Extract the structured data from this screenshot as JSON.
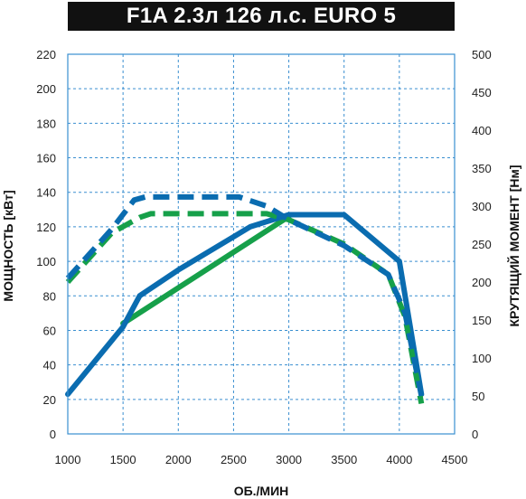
{
  "chart_data": {
    "type": "line",
    "title": "F1A 2.3л 126 л.с. EURO 5",
    "xlabel": "ОБ./МИН",
    "ylabel_left": "МОЩНОСТЬ [кВт]",
    "ylabel_right": "КРУТЯЩИЙ МОМЕНТ [Нм]",
    "xlim": [
      1000,
      4500
    ],
    "ylim_left": [
      0,
      220
    ],
    "ylim_right": [
      0,
      500
    ],
    "x_ticks": [
      1000,
      1500,
      2000,
      2500,
      3000,
      3500,
      4000,
      4500
    ],
    "y_ticks_left": [
      0,
      20,
      40,
      60,
      80,
      100,
      120,
      140,
      160,
      180,
      200,
      220
    ],
    "y_ticks_right": [
      0,
      50,
      100,
      150,
      200,
      250,
      300,
      350,
      400,
      450,
      500
    ],
    "grid": true,
    "colors": {
      "blue": "#0a6cb0",
      "green": "#16a04a",
      "frame": "#3a8fd0",
      "grid": "#3a8fd0"
    },
    "series": [
      {
        "axis": "left",
        "style": "solid",
        "color": "#16a04a",
        "points": [
          [
            1500,
            64
          ],
          [
            3000,
            126
          ]
        ]
      },
      {
        "axis": "left",
        "style": "solid",
        "color": "#0a6cb0",
        "points": [
          [
            1000,
            23
          ],
          [
            1500,
            62
          ],
          [
            1650,
            80
          ],
          [
            2000,
            95
          ],
          [
            2650,
            120
          ],
          [
            3000,
            127
          ],
          [
            3500,
            127
          ],
          [
            4000,
            100
          ],
          [
            4200,
            23
          ]
        ]
      },
      {
        "axis": "right",
        "style": "dashed",
        "color": "#16a04a",
        "points": [
          [
            1000,
            200
          ],
          [
            1400,
            265
          ],
          [
            1650,
            285
          ],
          [
            1750,
            290
          ],
          [
            2800,
            290
          ],
          [
            3000,
            282
          ],
          [
            3500,
            250
          ],
          [
            3900,
            210
          ],
          [
            4050,
            155
          ],
          [
            4200,
            40
          ]
        ]
      },
      {
        "axis": "right",
        "style": "dashed",
        "color": "#0a6cb0",
        "points": [
          [
            1000,
            205
          ],
          [
            1400,
            270
          ],
          [
            1600,
            308
          ],
          [
            1700,
            312
          ],
          [
            2550,
            312
          ],
          [
            2800,
            300
          ],
          [
            3000,
            282
          ],
          [
            3500,
            248
          ],
          [
            3900,
            210
          ],
          [
            4050,
            160
          ],
          [
            4200,
            50
          ]
        ]
      }
    ]
  }
}
